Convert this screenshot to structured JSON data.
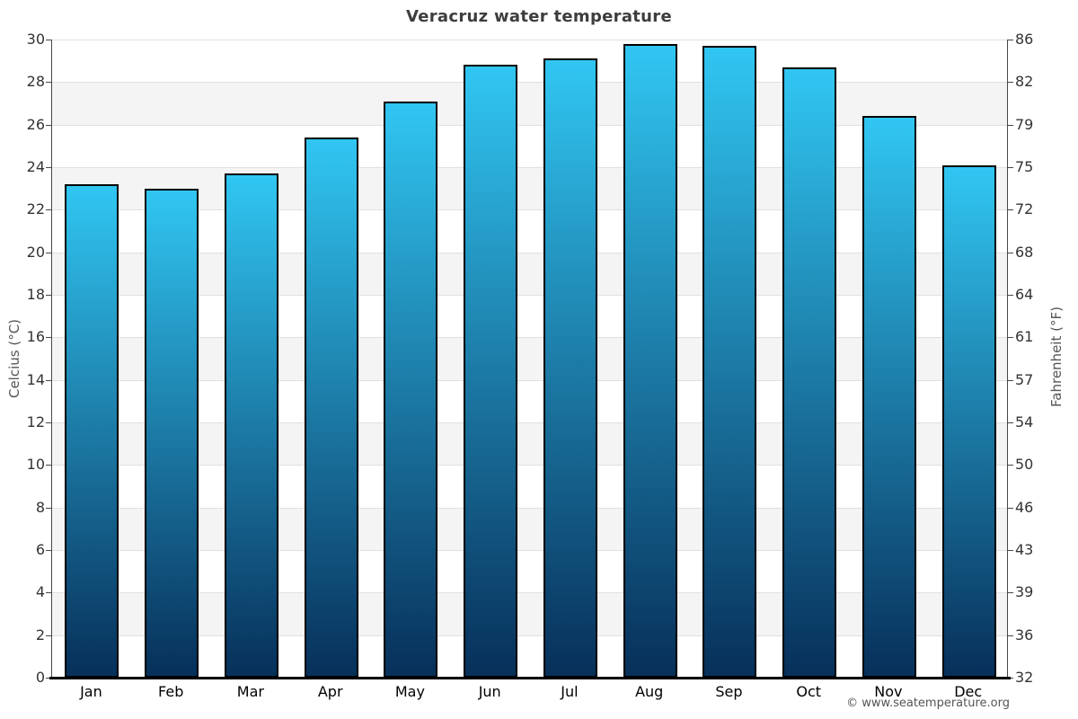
{
  "chart_data": {
    "type": "bar",
    "title": "Veracruz water temperature",
    "xlabel": "",
    "ylabel_left": "Celcius (°C)",
    "ylabel_right": "Fahrenheit (°F)",
    "categories": [
      "Jan",
      "Feb",
      "Mar",
      "Apr",
      "May",
      "Jun",
      "Jul",
      "Aug",
      "Sep",
      "Oct",
      "Nov",
      "Dec"
    ],
    "values": [
      23.2,
      23.0,
      23.7,
      25.4,
      27.1,
      28.8,
      29.1,
      29.8,
      29.7,
      28.7,
      26.4,
      24.1
    ],
    "unit": "°C",
    "ylim": [
      0,
      30
    ],
    "yticks_left": [
      30,
      28,
      26,
      24,
      22,
      20,
      18,
      16,
      14,
      12,
      10,
      8,
      6,
      4,
      2,
      0
    ],
    "yticks_right": [
      86,
      82,
      79,
      75,
      72,
      68,
      64,
      61,
      57,
      54,
      50,
      46,
      43,
      39,
      36,
      32
    ],
    "grid": "horizontal gridlines every 2°C with alternating light-gray bands",
    "legend": "none",
    "credit": "© www.seatemperature.org",
    "colors": {
      "bar_gradient_top": "#31c6f2",
      "bar_gradient_bottom": "#07305a",
      "bar_border": "#000000",
      "band_fill": "#f4f4f4",
      "gridline": "#e0e0e0",
      "axis_line": "#474747",
      "bottom_axis_line": "#000000",
      "title_text": "#3d3d3d",
      "tick_label_text": "#333333",
      "month_label_text": "#000000",
      "axis_title_text": "#555555",
      "credit_text": "#555555"
    }
  }
}
